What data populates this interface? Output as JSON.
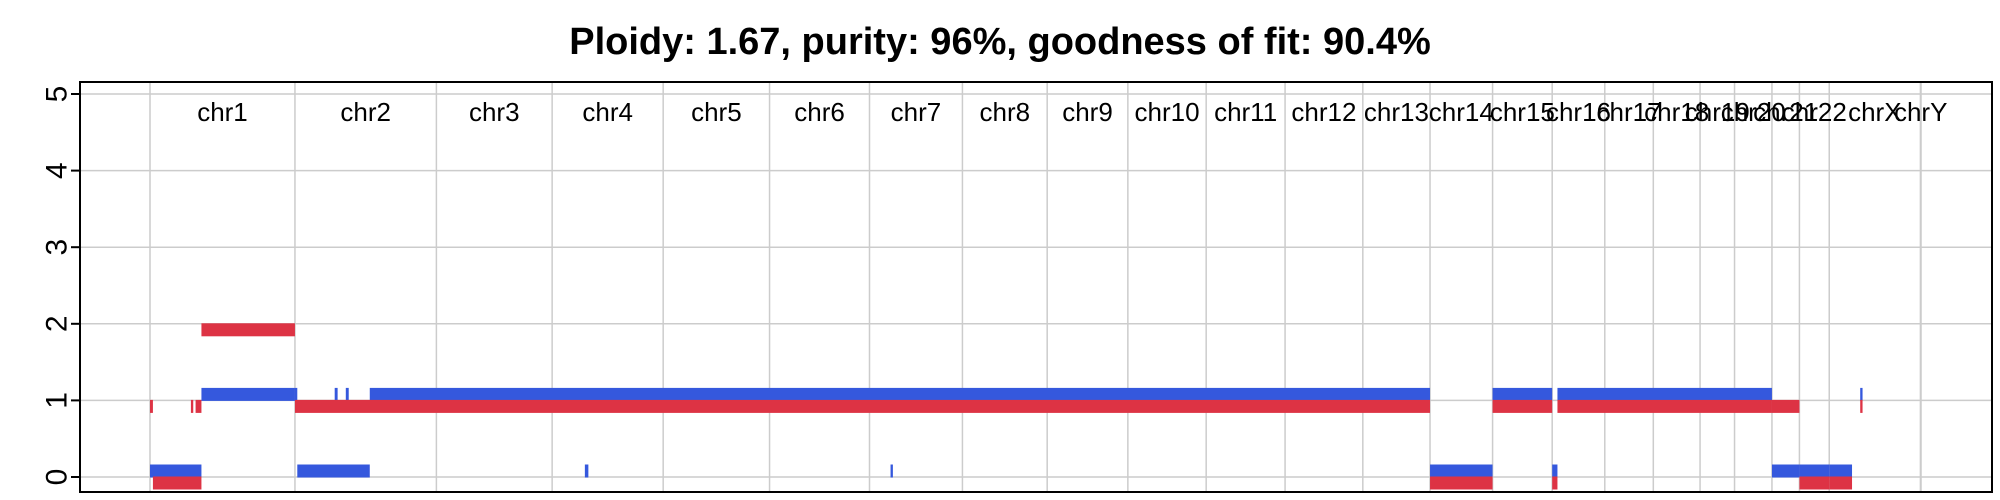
{
  "chart_data": {
    "type": "bar",
    "title": "Ploidy: 1.67, purity: 96%, goodness of fit: 90.4%",
    "xlabel": "",
    "ylabel": "",
    "ylim": [
      0,
      5
    ],
    "yticks": [
      "0",
      "1",
      "2",
      "3",
      "4",
      "5"
    ],
    "grid": true,
    "legend": "none",
    "colors": {
      "major": "#3558dd",
      "minor": "#dd3344",
      "grid": "#cccccc"
    },
    "chromosomes": [
      {
        "name": "chr1",
        "start": 0,
        "end": 248
      },
      {
        "name": "chr2",
        "start": 248,
        "end": 490
      },
      {
        "name": "chr3",
        "start": 490,
        "end": 688
      },
      {
        "name": "chr4",
        "start": 688,
        "end": 878
      },
      {
        "name": "chr5",
        "start": 878,
        "end": 1060
      },
      {
        "name": "chr6",
        "start": 1060,
        "end": 1231
      },
      {
        "name": "chr7",
        "start": 1231,
        "end": 1390
      },
      {
        "name": "chr8",
        "start": 1390,
        "end": 1535
      },
      {
        "name": "chr9",
        "start": 1535,
        "end": 1673
      },
      {
        "name": "chr10",
        "start": 1673,
        "end": 1807
      },
      {
        "name": "chr11",
        "start": 1807,
        "end": 1942
      },
      {
        "name": "chr12",
        "start": 1942,
        "end": 2075
      },
      {
        "name": "chr13",
        "start": 2075,
        "end": 2190
      },
      {
        "name": "chr14",
        "start": 2190,
        "end": 2297
      },
      {
        "name": "chr15",
        "start": 2297,
        "end": 2399
      },
      {
        "name": "chr16",
        "start": 2399,
        "end": 2489
      },
      {
        "name": "chr17",
        "start": 2489,
        "end": 2572
      },
      {
        "name": "chr18",
        "start": 2572,
        "end": 2652
      },
      {
        "name": "chr19",
        "start": 2652,
        "end": 2711
      },
      {
        "name": "chr20",
        "start": 2711,
        "end": 2775
      },
      {
        "name": "chr21",
        "start": 2775,
        "end": 2822
      },
      {
        "name": "chr22",
        "start": 2822,
        "end": 2873
      },
      {
        "name": "chrX",
        "start": 2873,
        "end": 3029
      },
      {
        "name": "chrY",
        "start": 3029,
        "end": 3030
      }
    ],
    "series": [
      {
        "color_key": "major",
        "segments": [
          {
            "start": 0,
            "end": 88,
            "value": 0
          },
          {
            "start": 88,
            "end": 248,
            "value": 1
          },
          {
            "start": 248,
            "end": 252,
            "value": 1
          },
          {
            "start": 252,
            "end": 376,
            "value": 0
          },
          {
            "start": 316,
            "end": 321,
            "value": 1
          },
          {
            "start": 335,
            "end": 340,
            "value": 1
          },
          {
            "start": 376,
            "end": 2190,
            "value": 1
          },
          {
            "start": 744,
            "end": 750,
            "value": 0
          },
          {
            "start": 1267,
            "end": 1271,
            "value": 0
          },
          {
            "start": 2190,
            "end": 2297,
            "value": 0
          },
          {
            "start": 2297,
            "end": 2399,
            "value": 1
          },
          {
            "start": 2399,
            "end": 2408,
            "value": 0
          },
          {
            "start": 2408,
            "end": 2775,
            "value": 1
          },
          {
            "start": 2775,
            "end": 2822,
            "value": 0
          },
          {
            "start": 2822,
            "end": 2873,
            "value": 0
          },
          {
            "start": 2873,
            "end": 2912,
            "value": 0
          },
          {
            "start": 2926,
            "end": 2930,
            "value": 1
          }
        ]
      },
      {
        "color_key": "minor",
        "segments": [
          {
            "start": 0,
            "end": 5,
            "value": 1
          },
          {
            "start": 5,
            "end": 88,
            "value": 0
          },
          {
            "start": 70,
            "end": 74,
            "value": 1
          },
          {
            "start": 78,
            "end": 88,
            "value": 1
          },
          {
            "start": 88,
            "end": 248,
            "value": 2
          },
          {
            "start": 248,
            "end": 2190,
            "value": 1
          },
          {
            "start": 2190,
            "end": 2297,
            "value": 0
          },
          {
            "start": 2297,
            "end": 2399,
            "value": 1
          },
          {
            "start": 2399,
            "end": 2408,
            "value": 0
          },
          {
            "start": 2408,
            "end": 2775,
            "value": 1
          },
          {
            "start": 2775,
            "end": 2822,
            "value": 1
          },
          {
            "start": 2822,
            "end": 2873,
            "value": 0
          },
          {
            "start": 2873,
            "end": 2912,
            "value": 0
          },
          {
            "start": 2926,
            "end": 2930,
            "value": 1
          }
        ]
      }
    ]
  }
}
